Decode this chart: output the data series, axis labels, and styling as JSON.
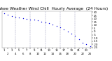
{
  "title": "Milwaukee Weather Wind Chill",
  "subtitle": "Hourly Average",
  "subtitle2": "(24 Hours)",
  "hours": [
    1,
    2,
    3,
    4,
    5,
    6,
    7,
    8,
    9,
    10,
    11,
    12,
    13,
    14,
    15,
    16,
    17,
    18,
    19,
    20,
    21,
    22,
    23,
    24
  ],
  "wind_chill": [
    28,
    26,
    24,
    23,
    22,
    21,
    20,
    19,
    18,
    17,
    15,
    14,
    13,
    11,
    9,
    6,
    3,
    0,
    -3,
    -7,
    -12,
    -17,
    -20,
    -23
  ],
  "dot_color": "#0000dd",
  "bg_color": "#ffffff",
  "grid_color": "#9999bb",
  "title_color": "#000000",
  "ylim": [
    -25,
    32
  ],
  "xlim": [
    0.5,
    24.5
  ],
  "ytick_values": [
    30,
    25,
    20,
    15,
    10,
    5,
    0,
    -5,
    -10,
    -15,
    -20,
    -25
  ],
  "ytick_labels": [
    "30",
    "25",
    "20",
    "15",
    "10",
    "5",
    "0",
    "-5",
    "-10",
    "-15",
    "-20",
    "-25"
  ],
  "xtick_values": [
    1,
    2,
    3,
    4,
    5,
    6,
    7,
    8,
    9,
    10,
    11,
    12,
    13,
    14,
    15,
    16,
    17,
    18,
    19,
    20,
    21,
    22,
    23,
    24
  ],
  "vgrid_x": [
    4,
    8,
    12,
    16,
    20
  ],
  "marker_size": 2.0,
  "title_fontsize": 4.2,
  "tick_fontsize": 2.8
}
